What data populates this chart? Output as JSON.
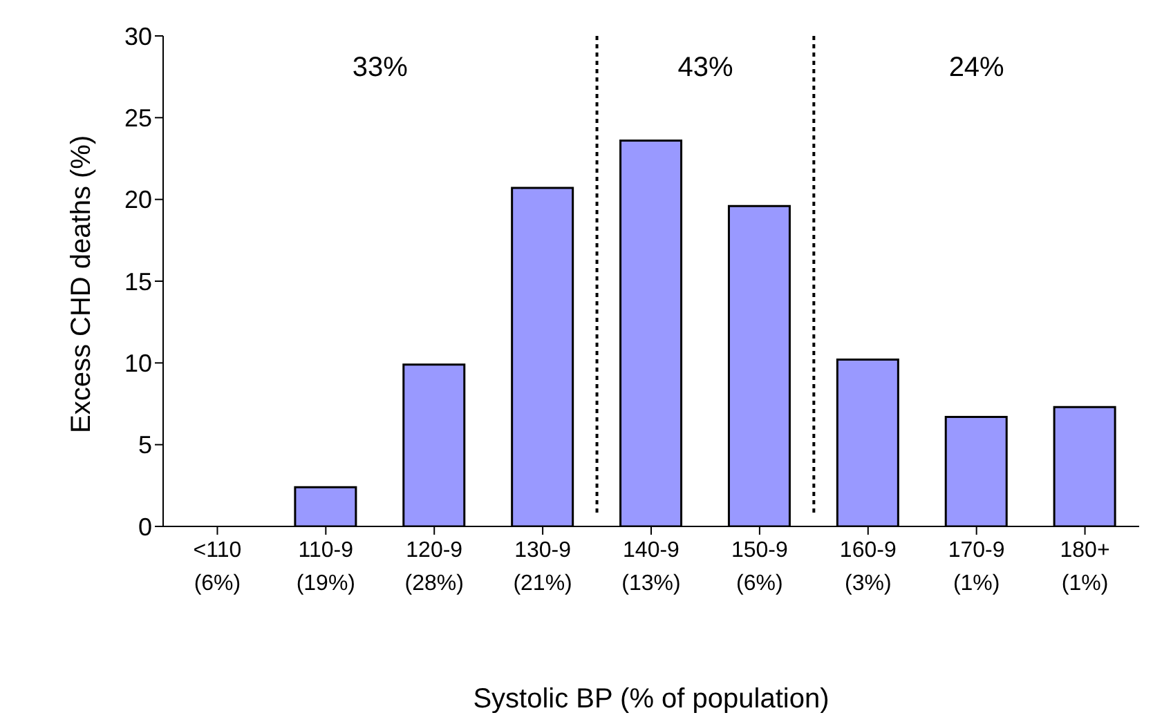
{
  "chart_data": {
    "type": "bar",
    "xlabel": "Systolic BP (% of population)",
    "ylabel": "Excess CHD deaths (%)",
    "categories": [
      "<110\n(6%)",
      "110-9\n(19%)",
      "120-9\n(28%)",
      "130-9\n(21%)",
      "140-9\n(13%)",
      "150-9\n(6%)",
      "160-9\n(3%)",
      "170-9\n(1%)",
      "180+\n(1%)"
    ],
    "values": [
      0,
      2.4,
      9.9,
      20.7,
      23.6,
      19.6,
      10.2,
      6.7,
      7.3
    ],
    "color": "#9999ff",
    "ylim": [
      0,
      30
    ],
    "yticks": [
      0,
      5,
      10,
      15,
      20,
      25,
      30
    ],
    "annotations": [
      "33%",
      "43%",
      "24%"
    ],
    "grid": false,
    "legend": false
  }
}
